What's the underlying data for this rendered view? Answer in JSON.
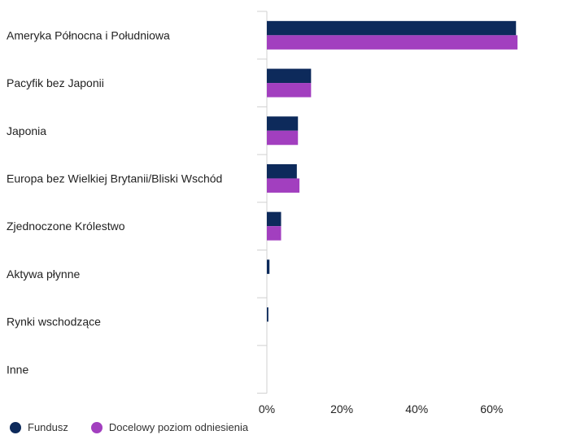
{
  "chart_data": {
    "type": "bar",
    "orientation": "horizontal",
    "categories": [
      "Ameryka Północna i Południowa",
      "Pacyfik bez Japonii",
      "Japonia",
      "Europa bez Wielkiej Brytanii/Bliski Wschód",
      "Zjednoczone Królestwo",
      "Aktywa płynne",
      "Rynki wschodzące",
      "Inne"
    ],
    "series": [
      {
        "name": "Fundusz",
        "color": "#0d2a5b",
        "values": [
          66.5,
          11.8,
          8.3,
          8.0,
          3.8,
          0.7,
          0.4,
          0.0
        ]
      },
      {
        "name": "Docelowy poziom odniesienia",
        "color": "#a23fbf",
        "values": [
          66.9,
          11.8,
          8.3,
          8.7,
          3.8,
          0.0,
          0.0,
          0.0
        ]
      }
    ],
    "xticks": [
      "0%",
      "20%",
      "40%",
      "60%"
    ],
    "tick_values": [
      0,
      20,
      40,
      60
    ],
    "xlim": [
      0,
      76
    ],
    "grid": false,
    "legend_position": "bottom-left"
  }
}
